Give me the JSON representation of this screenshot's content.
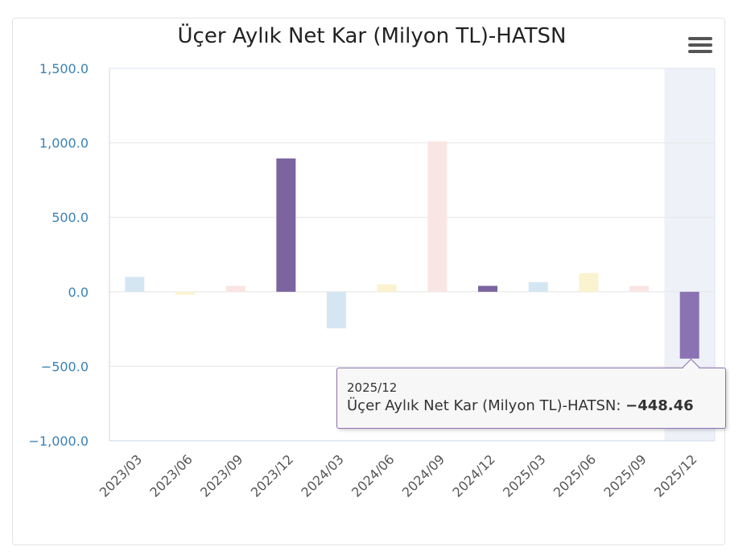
{
  "chart_data": {
    "type": "bar",
    "title": "Üçer Aylık Net Kar (Milyon TL)-HATSN",
    "categories": [
      "2023/03",
      "2023/06",
      "2023/09",
      "2023/12",
      "2024/03",
      "2024/06",
      "2024/09",
      "2024/12",
      "2025/03",
      "2025/06",
      "2025/09",
      "2025/12"
    ],
    "series": [
      {
        "name": "Üçer Aylık Net Kar (Milyon TL)-HATSN",
        "values": [
          100,
          -20,
          40,
          895,
          -245,
          50,
          1010,
          40,
          65,
          125,
          40,
          -448.46
        ]
      }
    ],
    "bar_colors": [
      "#d5e6f3",
      "#fbf2cf",
      "#f9e6e4",
      "#7b64a0",
      "#d5e6f3",
      "#fbf2cf",
      "#f9e6e4",
      "#7b64a0",
      "#d5e6f3",
      "#fbf2cf",
      "#f9e6e4",
      "#8a72b3"
    ],
    "yticks": [
      "1,500.0",
      "1,000.0",
      "500.0",
      "0.0",
      "−500.0",
      "−1,000.0"
    ],
    "ylim": [
      -1000,
      1500
    ],
    "grid": true,
    "highlighted_category": "2025/12",
    "highlight_color": "#eef2f8"
  },
  "menu": {
    "icon": "hamburger-menu-icon"
  },
  "tooltip": {
    "category": "2025/12",
    "series_label": "Üçer Aylık Net Kar (Milyon TL)-HATSN: ",
    "value": "−448.46",
    "border_color": "#8a72b3"
  }
}
